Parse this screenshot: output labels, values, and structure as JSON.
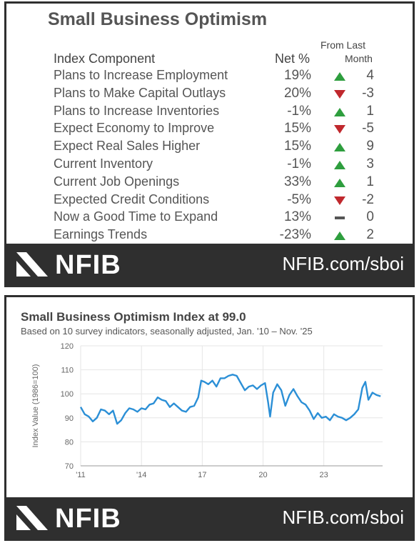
{
  "table_panel": {
    "title": "Small Business Optimism",
    "header": {
      "component": "Index Component",
      "net": "Net %",
      "change_line1": "From Last",
      "change_line2": "Month"
    },
    "rows": [
      {
        "label": "Plans to Increase Employment",
        "net": "19%",
        "direction": "up",
        "change": "4"
      },
      {
        "label": "Plans to Make Capital Outlays",
        "net": "20%",
        "direction": "down",
        "change": "-3"
      },
      {
        "label": "Plans to Increase Inventories",
        "net": "-1%",
        "direction": "up",
        "change": "1"
      },
      {
        "label": "Expect Economy to Improve",
        "net": "15%",
        "direction": "down",
        "change": "-5"
      },
      {
        "label": "Expect Real Sales Higher",
        "net": "15%",
        "direction": "up",
        "change": "9"
      },
      {
        "label": "Current Inventory",
        "net": "-1%",
        "direction": "up",
        "change": "3"
      },
      {
        "label": "Current Job Openings",
        "net": "33%",
        "direction": "up",
        "change": "1"
      },
      {
        "label": "Expected Credit Conditions",
        "net": "-5%",
        "direction": "down",
        "change": "-2"
      },
      {
        "label": "Now a Good Time to Expand",
        "net": "13%",
        "direction": "flat",
        "change": "0"
      },
      {
        "label": "Earnings Trends",
        "net": "-23%",
        "direction": "up",
        "change": "2"
      }
    ],
    "colors": {
      "up": "#2e9e3e",
      "down": "#c0282d",
      "flat": "#555555"
    }
  },
  "footer": {
    "logo_text": "NFIB",
    "link": "NFIB.com/sboi"
  },
  "chart_data": {
    "type": "line",
    "title": "Small Business Optimism Index at 99.0",
    "subtitle": "Based on 10 survey indicators, seasonally adjusted,  Jan. '10 – Nov. '25",
    "ylabel": "Index Value (1986=100)",
    "xlabel": "",
    "ylim": [
      70,
      120
    ],
    "yticks": [
      70,
      80,
      90,
      100,
      110,
      120
    ],
    "xlim": [
      2011.0,
      2025.9
    ],
    "xticks": [
      {
        "value": 2011,
        "label": "'11"
      },
      {
        "value": 2014,
        "label": "'14"
      },
      {
        "value": 2017,
        "label": "17"
      },
      {
        "value": 2020,
        "label": "20"
      },
      {
        "value": 2023,
        "label": "23"
      }
    ],
    "grid": true,
    "line_color": "#2b8fd6",
    "series": [
      {
        "x": [
          2011.0,
          2011.2,
          2011.4,
          2011.6,
          2011.8,
          2012.0,
          2012.2,
          2012.4,
          2012.6,
          2012.8,
          2013.0,
          2013.2,
          2013.4,
          2013.6,
          2013.8,
          2014.0,
          2014.2,
          2014.4,
          2014.6,
          2014.8,
          2015.0,
          2015.2,
          2015.4,
          2015.6,
          2015.8,
          2016.0,
          2016.2,
          2016.4,
          2016.6,
          2016.8,
          2016.95,
          2017.1,
          2017.3,
          2017.5,
          2017.7,
          2017.9,
          2018.1,
          2018.3,
          2018.5,
          2018.7,
          2018.9,
          2019.1,
          2019.3,
          2019.5,
          2019.7,
          2019.9,
          2020.1,
          2020.25,
          2020.35,
          2020.5,
          2020.7,
          2020.9,
          2021.1,
          2021.3,
          2021.5,
          2021.7,
          2021.9,
          2022.1,
          2022.3,
          2022.5,
          2022.7,
          2022.9,
          2023.1,
          2023.3,
          2023.5,
          2023.7,
          2023.9,
          2024.1,
          2024.3,
          2024.5,
          2024.7,
          2024.9,
          2025.05,
          2025.2,
          2025.4,
          2025.6,
          2025.8
        ],
        "y": [
          94.5,
          91.5,
          90.5,
          88.5,
          90.0,
          93.5,
          93.0,
          91.5,
          93.0,
          87.5,
          89.0,
          92.0,
          94.0,
          93.5,
          92.5,
          94.0,
          93.5,
          95.5,
          96.0,
          98.5,
          97.5,
          97.0,
          94.5,
          96.0,
          94.5,
          93.0,
          92.5,
          94.5,
          95.0,
          98.5,
          105.5,
          105.0,
          104.0,
          105.5,
          103.0,
          106.5,
          106.5,
          107.5,
          108.0,
          107.5,
          104.5,
          101.5,
          103.0,
          103.5,
          102.0,
          103.5,
          104.5,
          96.5,
          90.5,
          100.5,
          104.0,
          101.5,
          95.0,
          99.5,
          102.0,
          99.0,
          96.5,
          95.5,
          93.0,
          89.5,
          92.0,
          90.0,
          90.5,
          89.0,
          91.5,
          90.5,
          90.0,
          89.0,
          90.0,
          91.5,
          93.5,
          102.5,
          105.0,
          97.5,
          100.5,
          99.5,
          99.0
        ]
      }
    ]
  }
}
